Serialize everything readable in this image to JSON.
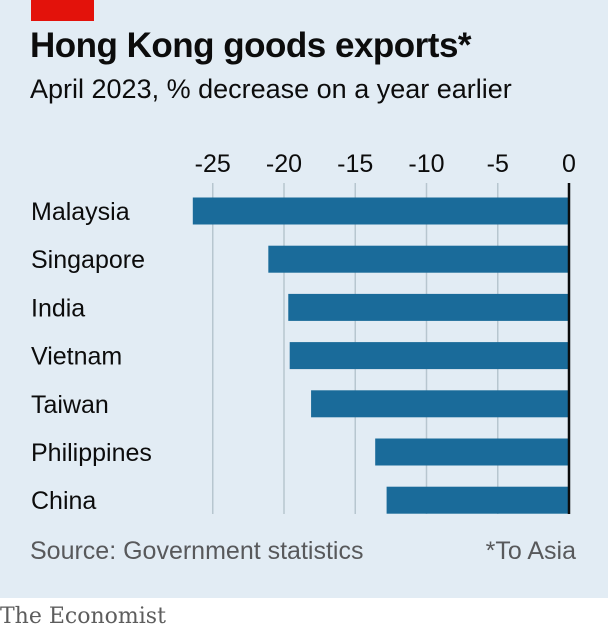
{
  "header": {
    "title": "Hong Kong goods exports*",
    "subtitle": "April 2023, % decrease on a year earlier"
  },
  "footer": {
    "source": "Source: Government statistics",
    "footnote": "*To Asia",
    "brand": "The Economist"
  },
  "colors": {
    "bar": "#1a6b9a",
    "background": "#e2ecf4",
    "brand_red": "#e3120b"
  },
  "chart_data": {
    "type": "bar",
    "orientation": "horizontal",
    "title": "Hong Kong goods exports*",
    "subtitle": "April 2023, % decrease on a year earlier",
    "categories": [
      "Malaysia",
      "Singapore",
      "India",
      "Vietnam",
      "Taiwan",
      "Philippines",
      "China"
    ],
    "values": [
      -26.4,
      -21.1,
      -19.7,
      -19.6,
      -18.1,
      -13.6,
      -12.8
    ],
    "xlim": [
      -28,
      0
    ],
    "xticks": [
      -25,
      -20,
      -15,
      -10,
      -5,
      0
    ],
    "xtick_labels": [
      "-25",
      "-20",
      "-15",
      "-10",
      "-5",
      "0"
    ],
    "axis_position": "top",
    "grid": true
  }
}
